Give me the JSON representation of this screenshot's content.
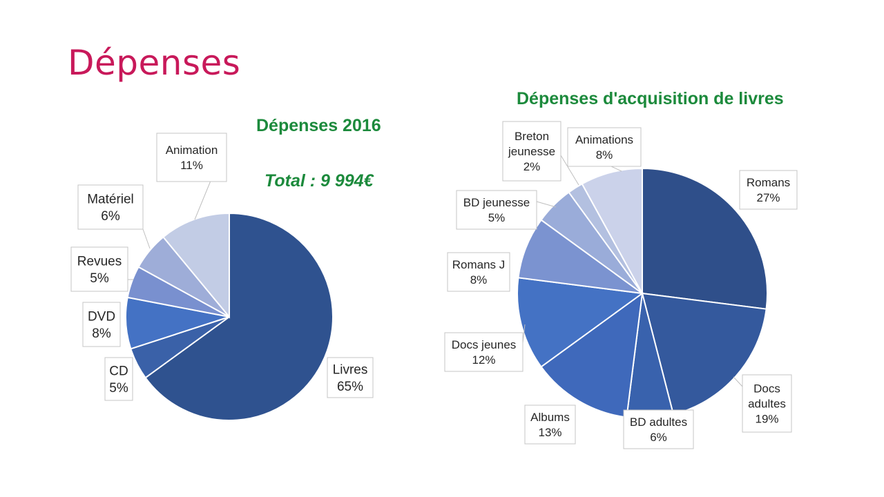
{
  "page": {
    "title": "Dépenses"
  },
  "chart_data": [
    {
      "type": "pie",
      "title": "Dépenses 2016",
      "subtitle": "Total : 9 994€",
      "slices": [
        {
          "label": "Livres",
          "percent_label": "65%",
          "value": 65,
          "color": "#2f528f"
        },
        {
          "label": "CD",
          "percent_label": "5%",
          "value": 5,
          "color": "#3a61a8"
        },
        {
          "label": "DVD",
          "percent_label": "8%",
          "value": 8,
          "color": "#4472c4"
        },
        {
          "label": "Revues",
          "percent_label": "5%",
          "value": 5,
          "color": "#7990cf"
        },
        {
          "label": "Matériel",
          "percent_label": "6%",
          "value": 6,
          "color": "#9eadd8"
        },
        {
          "label": "Animation",
          "percent_label": "11%",
          "value": 11,
          "color": "#c2cce5"
        }
      ]
    },
    {
      "type": "pie",
      "title": "Dépenses d'acquisition de livres",
      "slices": [
        {
          "label": "Romans",
          "percent_label": "27%",
          "value": 27,
          "color": "#2f4f8a"
        },
        {
          "label": "Docs adultes",
          "percent_label": "19%",
          "value": 19,
          "color": "#34599d"
        },
        {
          "label": "BD adultes",
          "percent_label": "6%",
          "value": 6,
          "color": "#3962ad"
        },
        {
          "label": "Albums",
          "percent_label": "13%",
          "value": 13,
          "color": "#3f69bb"
        },
        {
          "label": "Docs jeunes",
          "percent_label": "12%",
          "value": 12,
          "color": "#4472c4"
        },
        {
          "label": "Romans J",
          "percent_label": "8%",
          "value": 8,
          "color": "#7b93d0"
        },
        {
          "label": "BD jeunesse",
          "percent_label": "5%",
          "value": 5,
          "color": "#9aacd9"
        },
        {
          "label": "Breton jeunesse",
          "percent_label": "2%",
          "value": 2,
          "color": "#b3c0e0"
        },
        {
          "label": "Animations",
          "percent_label": "8%",
          "value": 8,
          "color": "#cbd2ea"
        }
      ]
    }
  ]
}
